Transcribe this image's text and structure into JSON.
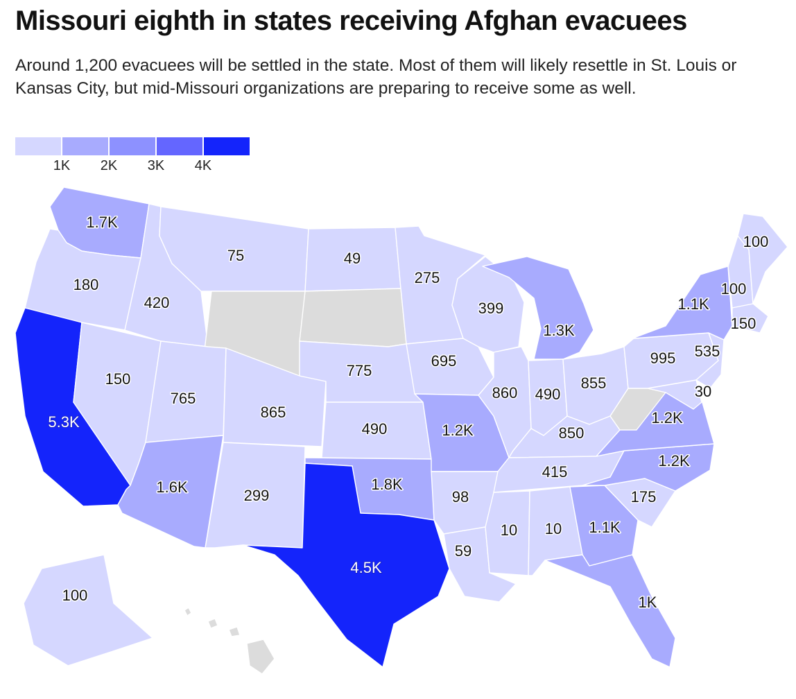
{
  "title": "Missouri eighth in states receiving Afghan evacuees",
  "subtitle": "Around 1,200 evacuees will be settled in the state. Most of them will likely resettle in St. Louis or Kansas City, but mid-Missouri organizations are preparing to receive some as well.",
  "legend": {
    "colors": [
      "#d5d7ff",
      "#a8abfe",
      "#8d91ff",
      "#6466ff",
      "#1424fb"
    ],
    "ticks": [
      "1K",
      "2K",
      "3K",
      "4K"
    ]
  },
  "no_data_color": "#dcdcdc",
  "chart_data": {
    "type": "choropleth",
    "states": [
      {
        "state": "Washington",
        "value": 1700,
        "label": "1.7K"
      },
      {
        "state": "Oregon",
        "value": 180,
        "label": "180"
      },
      {
        "state": "California",
        "value": 5300,
        "label": "5.3K"
      },
      {
        "state": "Nevada",
        "value": 150,
        "label": "150"
      },
      {
        "state": "Idaho",
        "value": 420,
        "label": "420"
      },
      {
        "state": "Montana",
        "value": 75,
        "label": "75"
      },
      {
        "state": "Wyoming",
        "value": null,
        "label": ""
      },
      {
        "state": "Utah",
        "value": 765,
        "label": "765"
      },
      {
        "state": "Arizona",
        "value": 1600,
        "label": "1.6K"
      },
      {
        "state": "Colorado",
        "value": 865,
        "label": "865"
      },
      {
        "state": "New Mexico",
        "value": 299,
        "label": "299"
      },
      {
        "state": "North Dakota",
        "value": 49,
        "label": "49"
      },
      {
        "state": "South Dakota",
        "value": null,
        "label": ""
      },
      {
        "state": "Nebraska",
        "value": 775,
        "label": "775"
      },
      {
        "state": "Kansas",
        "value": 490,
        "label": "490"
      },
      {
        "state": "Oklahoma",
        "value": 1800,
        "label": "1.8K"
      },
      {
        "state": "Texas",
        "value": 4500,
        "label": "4.5K"
      },
      {
        "state": "Minnesota",
        "value": 275,
        "label": "275"
      },
      {
        "state": "Iowa",
        "value": 695,
        "label": "695"
      },
      {
        "state": "Missouri",
        "value": 1200,
        "label": "1.2K"
      },
      {
        "state": "Arkansas",
        "value": 98,
        "label": "98"
      },
      {
        "state": "Louisiana",
        "value": 59,
        "label": "59"
      },
      {
        "state": "Wisconsin",
        "value": 399,
        "label": "399"
      },
      {
        "state": "Illinois",
        "value": 860,
        "label": "860"
      },
      {
        "state": "Michigan",
        "value": 1300,
        "label": "1.3K"
      },
      {
        "state": "Indiana",
        "value": 490,
        "label": "490"
      },
      {
        "state": "Ohio",
        "value": 855,
        "label": "855"
      },
      {
        "state": "Kentucky",
        "value": 850,
        "label": "850"
      },
      {
        "state": "Tennessee",
        "value": 415,
        "label": "415"
      },
      {
        "state": "Mississippi",
        "value": 10,
        "label": "10"
      },
      {
        "state": "Alabama",
        "value": 10,
        "label": "10"
      },
      {
        "state": "Georgia",
        "value": 1100,
        "label": "1.1K"
      },
      {
        "state": "Florida",
        "value": 1000,
        "label": "1K"
      },
      {
        "state": "South Carolina",
        "value": 175,
        "label": "175"
      },
      {
        "state": "North Carolina",
        "value": 1200,
        "label": "1.2K"
      },
      {
        "state": "Virginia",
        "value": 1200,
        "label": "1.2K"
      },
      {
        "state": "West Virginia",
        "value": null,
        "label": ""
      },
      {
        "state": "Maryland",
        "value": 30,
        "label": "30"
      },
      {
        "state": "Pennsylvania",
        "value": 995,
        "label": "995"
      },
      {
        "state": "New Jersey",
        "value": 535,
        "label": "535"
      },
      {
        "state": "New York",
        "value": 1100,
        "label": "1.1K"
      },
      {
        "state": "Vermont/New Hampshire",
        "value": 100,
        "label": "100"
      },
      {
        "state": "Massachusetts",
        "value": 150,
        "label": "150"
      },
      {
        "state": "Maine",
        "value": 100,
        "label": "100"
      },
      {
        "state": "Alaska",
        "value": 100,
        "label": "100"
      },
      {
        "state": "Hawaii",
        "value": null,
        "label": ""
      }
    ]
  }
}
